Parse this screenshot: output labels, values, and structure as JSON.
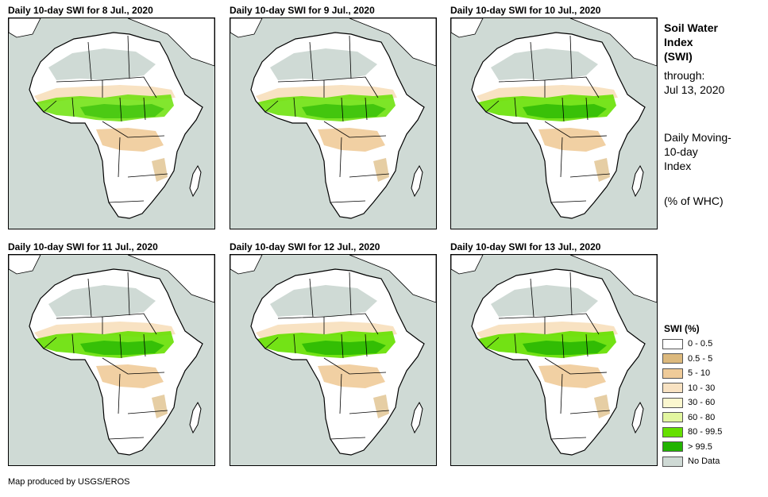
{
  "panels": [
    {
      "title": "Daily 10-day SWI for 8 Jul., 2020",
      "wet_level": 0.55
    },
    {
      "title": "Daily 10-day SWI for 9 Jul., 2020",
      "wet_level": 0.62
    },
    {
      "title": "Daily 10-day SWI for 10 Jul., 2020",
      "wet_level": 0.72
    },
    {
      "title": "Daily 10-day SWI for 11 Jul., 2020",
      "wet_level": 0.74
    },
    {
      "title": "Daily 10-day SWI for 12 Jul., 2020",
      "wet_level": 0.78
    },
    {
      "title": "Daily 10-day SWI for 13 Jul., 2020",
      "wet_level": 0.8
    }
  ],
  "side": {
    "title_line1": "Soil Water",
    "title_line2": "Index",
    "title_line3": "(SWI)",
    "through_label": "through:",
    "through_date": "Jul 13, 2020",
    "desc_line1": "Daily Moving-",
    "desc_line2": "10-day",
    "desc_line3": "Index",
    "units": "(% of WHC)"
  },
  "legend": {
    "title": "SWI (%)",
    "items": [
      {
        "label": "0 - 0.5",
        "color": "#ffffff"
      },
      {
        "label": "0.5 - 5",
        "color": "#dcb97d"
      },
      {
        "label": "5 - 10",
        "color": "#efcb99"
      },
      {
        "label": "10 - 30",
        "color": "#f8e2c2"
      },
      {
        "label": "30 - 60",
        "color": "#fbf7cf"
      },
      {
        "label": "60 - 80",
        "color": "#e2f6a0"
      },
      {
        "label": "80 - 99.5",
        "color": "#66e000"
      },
      {
        "label": "> 99.5",
        "color": "#21b300"
      },
      {
        "label": "No Data",
        "color": "#cfdad5"
      }
    ]
  },
  "footer": "Map produced by USGS/EROS"
}
